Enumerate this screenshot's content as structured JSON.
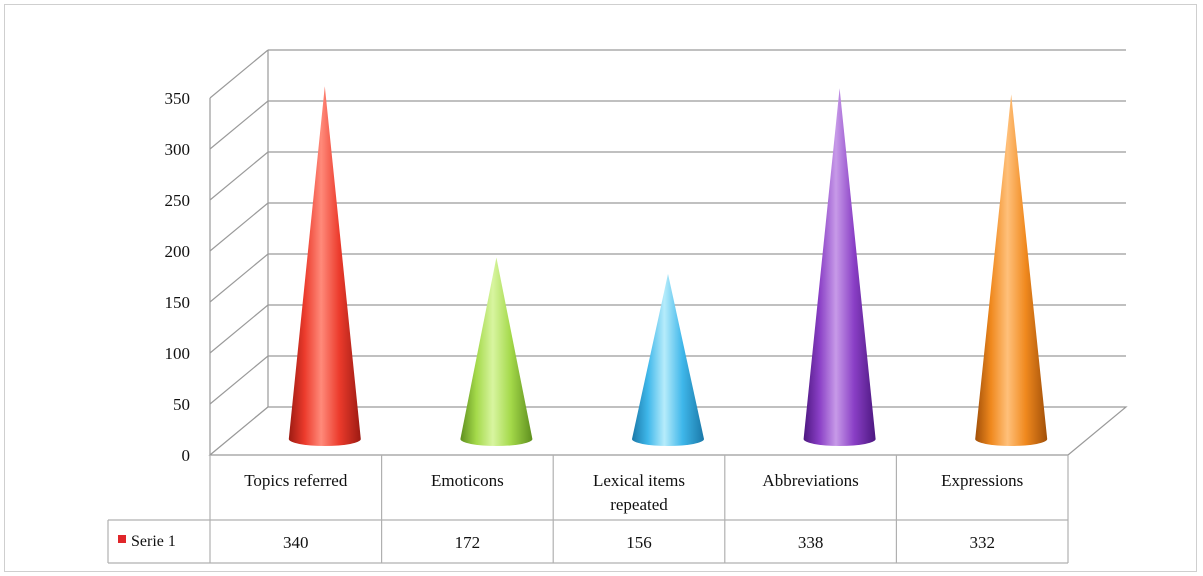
{
  "chart_data": {
    "type": "bar",
    "style": "3d-cones",
    "title": "",
    "xlabel": "",
    "ylabel": "",
    "ylim": [
      0,
      350
    ],
    "yticks": [
      0,
      50,
      100,
      150,
      200,
      250,
      300,
      350
    ],
    "grid": true,
    "legend": "data-table",
    "categories": [
      [
        "Topics referred"
      ],
      [
        "Emoticons"
      ],
      [
        "Lexical items",
        "repeated"
      ],
      [
        "Abbreviations"
      ],
      [
        "Expressions"
      ]
    ],
    "series": [
      {
        "name": "Serie 1",
        "values": [
          340,
          172,
          156,
          338,
          332
        ],
        "value_labels": [
          "340",
          "172",
          "156",
          "338",
          "332"
        ],
        "legend_color": "#e0262a"
      }
    ],
    "cone_colors": [
      {
        "light": "#ff8a7a",
        "mid": "#ec3b2c",
        "dark": "#9c1a12"
      },
      {
        "light": "#d8f5a0",
        "mid": "#a4d94a",
        "dark": "#5e8f1e"
      },
      {
        "light": "#b6ecfb",
        "mid": "#3fb7ea",
        "dark": "#1a78a8"
      },
      {
        "light": "#c79ae8",
        "mid": "#8a3fc6",
        "dark": "#4c1780"
      },
      {
        "light": "#ffc07a",
        "mid": "#f0891e",
        "dark": "#a14f08"
      }
    ],
    "axis_color": "#9a9a9a",
    "grid_color": "#9a9a9a"
  }
}
